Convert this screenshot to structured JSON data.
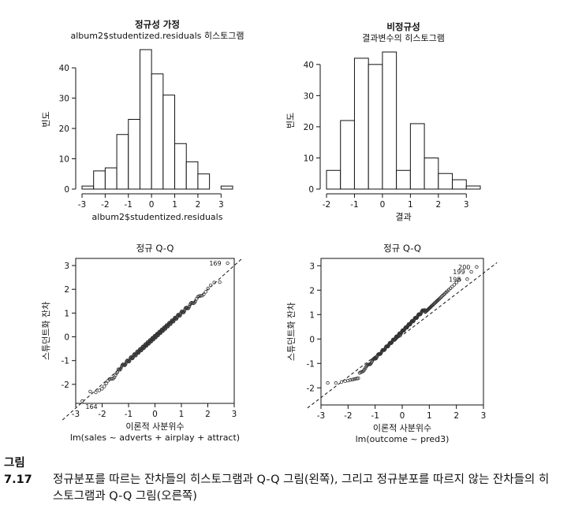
{
  "charts": [
    {
      "type": "bar",
      "title": "정규성 가정",
      "subtitle": "album2$studentized.residuals 히스토그램",
      "xlabel": "album2$studentized.residuals",
      "ylabel": "빈도",
      "bin_width": 0.5,
      "bin_starts": [
        -3,
        -2.5,
        -2,
        -1.5,
        -1,
        -0.5,
        0,
        0.5,
        1,
        1.5,
        2,
        2.5,
        3
      ],
      "values": [
        1,
        6,
        7,
        18,
        23,
        46,
        38,
        31,
        15,
        9,
        5,
        0,
        1
      ],
      "xlim": [
        -3,
        3.5
      ],
      "ylim": [
        0,
        46
      ],
      "xticks": [
        -3,
        -2,
        -1,
        0,
        1,
        2,
        3
      ],
      "yticks": [
        0,
        10,
        20,
        30,
        40
      ],
      "box": false
    },
    {
      "type": "bar",
      "title": "비정규성",
      "subtitle": "결과변수의 히스토그램",
      "xlabel": "결과",
      "ylabel": "빈도",
      "bin_width": 0.5,
      "bin_starts": [
        -2,
        -1.5,
        -1,
        -0.5,
        0,
        0.5,
        1,
        1.5,
        2,
        2.5,
        3
      ],
      "values": [
        6,
        22,
        42,
        40,
        44,
        6,
        21,
        10,
        5,
        3,
        1
      ],
      "xlim": [
        -2,
        3.5
      ],
      "ylim": [
        0,
        44
      ],
      "xticks": [
        -2,
        -1,
        0,
        1,
        2,
        3
      ],
      "yticks": [
        0,
        10,
        20,
        30,
        40
      ],
      "box": false
    },
    {
      "type": "scatter",
      "title": "정규 Q-Q",
      "xlabel": "이론적 사분위수",
      "xlabel2": "lm(sales ~ adverts + airplay + attract)",
      "ylabel": "스튜던트화 잔차",
      "xlim": [
        -3,
        3
      ],
      "ylim": [
        -2.8,
        3.3
      ],
      "xticks": [
        -3,
        -2,
        -1,
        0,
        1,
        2,
        3
      ],
      "yticks": [
        -2,
        -1,
        0,
        1,
        2,
        3
      ],
      "reference_line": {
        "intercept": 0,
        "slope": 1
      },
      "labels": [
        {
          "text": "169",
          "x": 2.75,
          "y": 3.1
        },
        {
          "text": "164",
          "x": -2.75,
          "y": -2.7
        }
      ],
      "extremes": {
        "x": [
          -2.75,
          -2.45,
          2.45,
          2.75
        ],
        "y": [
          -2.7,
          -2.3,
          2.3,
          3.1
        ]
      },
      "generator": {
        "n": 200,
        "mode": "normal"
      },
      "box": true
    },
    {
      "type": "scatter",
      "title": "정규 Q-Q",
      "xlabel": "이론적 사분위수",
      "xlabel2": "lm(outcome ~ pred3)",
      "ylabel": "스튜던트화 잔차",
      "xlim": [
        -3,
        3
      ],
      "ylim": [
        -2.7,
        3.3
      ],
      "xticks": [
        -3,
        -2,
        -1,
        0,
        1,
        2,
        3
      ],
      "yticks": [
        -2,
        -1,
        0,
        1,
        2,
        3
      ],
      "reference_line": {
        "intercept": 0.15,
        "slope": 0.85
      },
      "labels": [
        {
          "text": "200",
          "x": 2.75,
          "y": 2.95
        },
        {
          "text": "199",
          "x": 2.55,
          "y": 2.75
        },
        {
          "text": "198",
          "x": 2.4,
          "y": 2.45
        }
      ],
      "extremes": {
        "x": [
          -2.75,
          -2.45,
          2.4,
          2.55,
          2.75
        ],
        "y": [
          -1.8,
          -1.8,
          2.45,
          2.75,
          2.95
        ]
      },
      "generator": {
        "n": 200,
        "mode": "skew"
      },
      "box": true
    }
  ],
  "caption": {
    "label": "그림 7.17",
    "line1": "정규분포를 따르는 잔차들의 히스토그램과 Q-Q 그림(왼쪽), 그리고 정규분포를 따르지 않는 잔차들의 히",
    "line2": "스토그램과 Q-Q 그림(오른쪽)"
  },
  "colors": {
    "ink": "#111111",
    "point": "#333333",
    "background": "#ffffff"
  }
}
